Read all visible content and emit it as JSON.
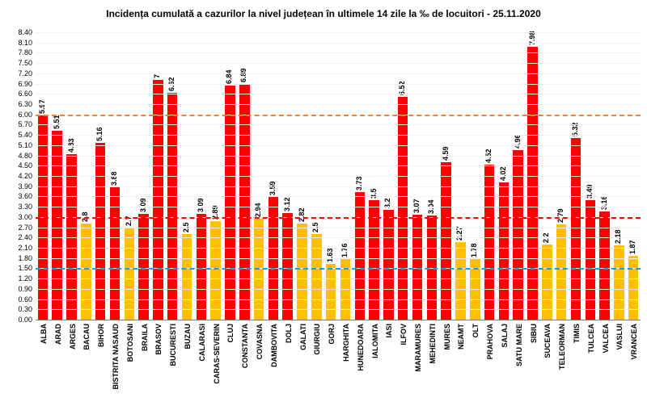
{
  "title": "Incidența cumulată a cazurilor la nivel județean în ultimele 14 zile la ‰ de locuitori - 25.11.2020",
  "title_fontsize": 12,
  "label_fontsize": 9,
  "tick_fontsize": 9,
  "background_color": "#ffffff",
  "grid_color": "#efefef",
  "axis_color": "#808080",
  "series_colors": {
    "high": "#ff0000",
    "low": "#ffc000"
  },
  "color_threshold": 3.0,
  "y_axis": {
    "min": 0,
    "max": 8.4,
    "step": 0.3
  },
  "reference_lines": [
    {
      "value": 1.5,
      "color": "#00a2e8",
      "dash": "6,4"
    },
    {
      "value": 3.0,
      "color": "#ff0000",
      "dash": "6,4"
    },
    {
      "value": 6.0,
      "color": "#ff7f27",
      "dash": "6,4"
    }
  ],
  "bars": [
    {
      "label": "ALBA",
      "value": 5.97
    },
    {
      "label": "ARAD",
      "value": 5.51
    },
    {
      "label": "ARGES",
      "value": 4.83
    },
    {
      "label": "BACAU",
      "value": 2.8
    },
    {
      "label": "BIHOR",
      "value": 5.16
    },
    {
      "label": "BISTRITA NASAUD",
      "value": 3.88
    },
    {
      "label": "BOTOSANI",
      "value": 2.7
    },
    {
      "label": "BRAILA",
      "value": 3.09
    },
    {
      "label": "BRASOV",
      "value": 7
    },
    {
      "label": "BUCURESTI",
      "value": 6.62
    },
    {
      "label": "BUZAU",
      "value": 2.5
    },
    {
      "label": "CALARASI",
      "value": 3.09
    },
    {
      "label": "CARAS-SEVERIN",
      "value": 2.89
    },
    {
      "label": "CLUJ",
      "value": 6.84
    },
    {
      "label": "CONSTANTA",
      "value": 6.89
    },
    {
      "label": "COVASNA",
      "value": 2.94
    },
    {
      "label": "DAMBOVITA",
      "value": 3.59
    },
    {
      "label": "DOLJ",
      "value": 3.12
    },
    {
      "label": "GALATI",
      "value": 2.82
    },
    {
      "label": "GIURGIU",
      "value": 2.5
    },
    {
      "label": "GORJ",
      "value": 1.63
    },
    {
      "label": "HARGHITA",
      "value": 1.76
    },
    {
      "label": "HUNEDOARA",
      "value": 3.73
    },
    {
      "label": "IALOMITA",
      "value": 3.5
    },
    {
      "label": "IASI",
      "value": 3.2
    },
    {
      "label": "ILFOV",
      "value": 6.52
    },
    {
      "label": "MARAMURES",
      "value": 3.07
    },
    {
      "label": "MEHEDINTI",
      "value": 3.04
    },
    {
      "label": "MURES",
      "value": 4.59
    },
    {
      "label": "NEAMT",
      "value": 2.27
    },
    {
      "label": "OLT",
      "value": 1.78
    },
    {
      "label": "PRAHOVA",
      "value": 4.52
    },
    {
      "label": "SALAJ",
      "value": 4.02
    },
    {
      "label": "SATU MARE",
      "value": 4.96
    },
    {
      "label": "SIBIU",
      "value": 7.98
    },
    {
      "label": "SUCEAVA",
      "value": 2.2
    },
    {
      "label": "TELEORMAN",
      "value": 2.79
    },
    {
      "label": "TIMIS",
      "value": 5.32
    },
    {
      "label": "TULCEA",
      "value": 3.49
    },
    {
      "label": "VALCEA",
      "value": 3.16
    },
    {
      "label": "VASLUI",
      "value": 2.18
    },
    {
      "label": "VRANCEA",
      "value": 1.87
    }
  ]
}
